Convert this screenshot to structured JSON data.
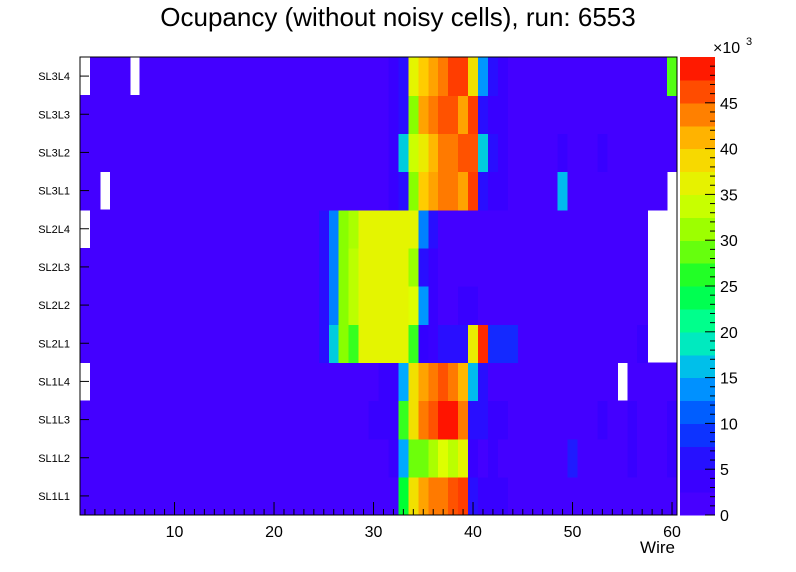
{
  "chart_data": {
    "type": "heatmap",
    "title": "Ocupancy (without noisy cells), run: 6553",
    "xlabel": "Wire",
    "ylabel": "",
    "xlim": [
      0.5,
      60.5
    ],
    "x_ticks": [
      10,
      20,
      30,
      40,
      50,
      60
    ],
    "y_categories": [
      "SL1L1",
      "SL1L2",
      "SL1L3",
      "SL1L4",
      "SL2L1",
      "SL2L2",
      "SL2L3",
      "SL2L4",
      "SL3L1",
      "SL3L2",
      "SL3L3",
      "SL3L4"
    ],
    "colorbar": {
      "min": 0,
      "max": 50,
      "multiplier_label": "×10",
      "multiplier_exponent": "3",
      "ticks": [
        0,
        5,
        10,
        15,
        20,
        25,
        30,
        35,
        40,
        45
      ]
    },
    "background_value": 2,
    "rows": [
      {
        "label": "SL1L1",
        "empty": [],
        "cells": [
          [
            30,
            31,
            2
          ],
          [
            32,
            32,
            2
          ],
          [
            33,
            33,
            25
          ],
          [
            34,
            34,
            38
          ],
          [
            35,
            35,
            42
          ],
          [
            36,
            36,
            44
          ],
          [
            37,
            37,
            44
          ],
          [
            38,
            38,
            46
          ],
          [
            39,
            39,
            47
          ],
          [
            40,
            40,
            6
          ],
          [
            41,
            43,
            4
          ]
        ]
      },
      {
        "label": "SL1L2",
        "empty": [],
        "cells": [
          [
            32,
            32,
            4
          ],
          [
            33,
            33,
            15
          ],
          [
            34,
            34,
            29
          ],
          [
            35,
            35,
            29
          ],
          [
            36,
            36,
            32
          ],
          [
            37,
            37,
            35
          ],
          [
            38,
            38,
            33
          ],
          [
            39,
            39,
            36
          ],
          [
            40,
            40,
            4
          ],
          [
            41,
            41,
            2
          ],
          [
            42,
            42,
            4
          ],
          [
            50,
            50,
            7
          ],
          [
            56,
            56,
            4
          ],
          [
            60,
            60,
            4
          ]
        ]
      },
      {
        "label": "SL1L3",
        "empty": [],
        "cells": [
          [
            30,
            31,
            4
          ],
          [
            32,
            32,
            4
          ],
          [
            33,
            33,
            27
          ],
          [
            34,
            34,
            38
          ],
          [
            35,
            35,
            44
          ],
          [
            36,
            36,
            46
          ],
          [
            37,
            37,
            49
          ],
          [
            38,
            38,
            49
          ],
          [
            39,
            39,
            44
          ],
          [
            40,
            40,
            6
          ],
          [
            41,
            41,
            6
          ],
          [
            42,
            43,
            4
          ],
          [
            53,
            53,
            4
          ],
          [
            56,
            56,
            4
          ],
          [
            60,
            60,
            4
          ]
        ]
      },
      {
        "label": "SL1L4",
        "empty": [
          1,
          55
        ],
        "cells": [
          [
            31,
            32,
            4
          ],
          [
            33,
            33,
            15
          ],
          [
            34,
            34,
            38
          ],
          [
            35,
            35,
            42
          ],
          [
            36,
            36,
            44
          ],
          [
            37,
            37,
            46
          ],
          [
            38,
            38,
            44
          ],
          [
            39,
            39,
            41
          ],
          [
            40,
            40,
            16
          ],
          [
            41,
            41,
            6
          ],
          [
            42,
            42,
            2
          ]
        ]
      },
      {
        "label": "SL2L1",
        "empty": [
          58,
          59,
          60
        ],
        "cells": [
          [
            25,
            25,
            6
          ],
          [
            26,
            26,
            17
          ],
          [
            27,
            27,
            30
          ],
          [
            28,
            28,
            27
          ],
          [
            29,
            33,
            36
          ],
          [
            34,
            34,
            27
          ],
          [
            35,
            35,
            5
          ],
          [
            36,
            36,
            4
          ],
          [
            37,
            38,
            6
          ],
          [
            39,
            39,
            6
          ],
          [
            40,
            40,
            37
          ],
          [
            41,
            41,
            48
          ],
          [
            42,
            44,
            8
          ],
          [
            57,
            57,
            4
          ]
        ]
      },
      {
        "label": "SL2L2",
        "empty": [
          58,
          59,
          60
        ],
        "cells": [
          [
            25,
            25,
            6
          ],
          [
            26,
            26,
            13
          ],
          [
            27,
            27,
            30
          ],
          [
            28,
            28,
            33
          ],
          [
            29,
            33,
            36
          ],
          [
            34,
            34,
            35
          ],
          [
            35,
            35,
            14
          ],
          [
            36,
            36,
            4
          ],
          [
            39,
            40,
            4
          ]
        ]
      },
      {
        "label": "SL2L3",
        "empty": [
          58,
          59,
          60
        ],
        "cells": [
          [
            25,
            25,
            6
          ],
          [
            26,
            26,
            13
          ],
          [
            27,
            27,
            30
          ],
          [
            28,
            28,
            33
          ],
          [
            29,
            33,
            36
          ],
          [
            34,
            34,
            31
          ],
          [
            35,
            35,
            6
          ],
          [
            36,
            36,
            4
          ]
        ]
      },
      {
        "label": "SL2L4",
        "empty": [
          1,
          58,
          59,
          60
        ],
        "cells": [
          [
            25,
            25,
            6
          ],
          [
            26,
            26,
            13
          ],
          [
            27,
            27,
            30
          ],
          [
            28,
            28,
            32
          ],
          [
            29,
            33,
            36
          ],
          [
            34,
            34,
            36
          ],
          [
            35,
            35,
            13
          ],
          [
            36,
            36,
            6
          ]
        ]
      },
      {
        "label": "SL3L1",
        "empty": [
          3,
          60
        ],
        "cells": [
          [
            32,
            32,
            4
          ],
          [
            33,
            33,
            6
          ],
          [
            34,
            34,
            30
          ],
          [
            35,
            35,
            40
          ],
          [
            36,
            36,
            42
          ],
          [
            37,
            37,
            44
          ],
          [
            38,
            38,
            44
          ],
          [
            39,
            39,
            42
          ],
          [
            40,
            40,
            47
          ],
          [
            41,
            41,
            6
          ],
          [
            42,
            43,
            4
          ],
          [
            49,
            49,
            16
          ],
          [
            60,
            60,
            4
          ]
        ]
      },
      {
        "label": "SL3L2",
        "empty": [],
        "cells": [
          [
            32,
            32,
            4
          ],
          [
            33,
            33,
            17
          ],
          [
            34,
            34,
            34
          ],
          [
            35,
            35,
            37
          ],
          [
            36,
            36,
            41
          ],
          [
            37,
            37,
            44
          ],
          [
            38,
            38,
            44
          ],
          [
            39,
            39,
            46
          ],
          [
            40,
            40,
            46
          ],
          [
            41,
            41,
            17
          ],
          [
            42,
            42,
            6
          ],
          [
            43,
            43,
            4
          ],
          [
            49,
            49,
            4
          ],
          [
            53,
            53,
            4
          ]
        ]
      },
      {
        "label": "SL3L3",
        "empty": [],
        "cells": [
          [
            32,
            32,
            4
          ],
          [
            33,
            33,
            6
          ],
          [
            34,
            34,
            30
          ],
          [
            35,
            35,
            42
          ],
          [
            36,
            36,
            44
          ],
          [
            37,
            37,
            46
          ],
          [
            38,
            38,
            46
          ],
          [
            39,
            39,
            42
          ],
          [
            40,
            40,
            47
          ],
          [
            41,
            41,
            6
          ],
          [
            42,
            43,
            4
          ]
        ]
      },
      {
        "label": "SL3L4",
        "empty": [
          1,
          6
        ],
        "cells": [
          [
            32,
            32,
            4
          ],
          [
            33,
            33,
            6
          ],
          [
            34,
            34,
            36
          ],
          [
            35,
            35,
            40
          ],
          [
            36,
            36,
            42
          ],
          [
            37,
            37,
            44
          ],
          [
            38,
            38,
            47
          ],
          [
            39,
            39,
            47
          ],
          [
            40,
            40,
            38
          ],
          [
            41,
            41,
            14
          ],
          [
            42,
            42,
            6
          ],
          [
            43,
            43,
            4
          ],
          [
            60,
            60,
            28
          ]
        ]
      }
    ]
  }
}
